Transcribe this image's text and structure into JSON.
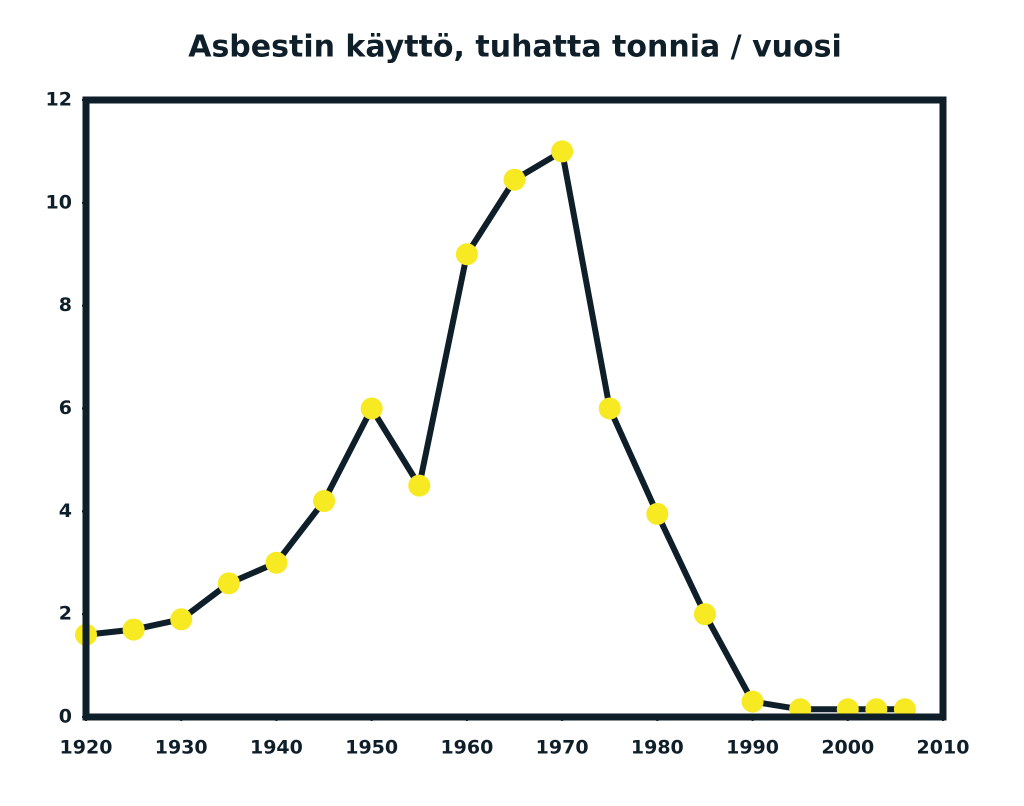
{
  "chart_data": {
    "type": "line",
    "title": "Asbestin käyttö, tuhatta tonnia / vuosi",
    "x": [
      1920,
      1925,
      1930,
      1935,
      1940,
      1945,
      1950,
      1955,
      1960,
      1965,
      1970,
      1975,
      1980,
      1985,
      1990,
      1995,
      2000,
      2003,
      2006
    ],
    "values": [
      1.6,
      1.7,
      1.9,
      2.6,
      3.0,
      4.2,
      6.0,
      4.5,
      9.0,
      10.45,
      11.0,
      6.0,
      3.95,
      2.0,
      0.3,
      0.15,
      0.15,
      0.15,
      0.15
    ],
    "color": "#0f1f2a",
    "marker_color": "#f7e922",
    "xlim": [
      1920,
      2010
    ],
    "xticks": [
      1920,
      1930,
      1940,
      1950,
      1960,
      1970,
      1980,
      1990,
      2000,
      2010
    ],
    "ylim": [
      0,
      12
    ],
    "yticks": [
      0,
      2,
      4,
      6,
      8,
      10,
      12
    ]
  }
}
